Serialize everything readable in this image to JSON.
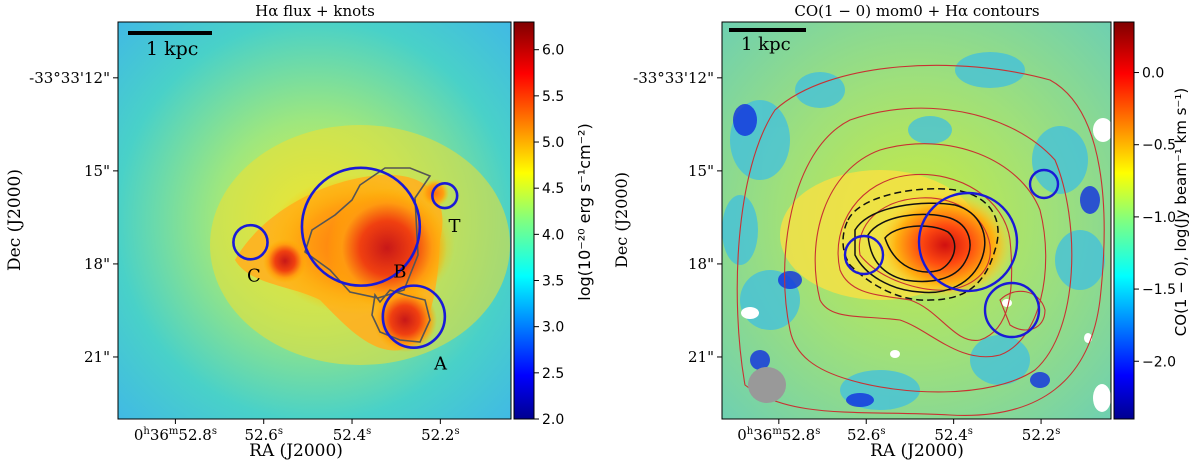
{
  "chart_data": [
    {
      "type": "heatmap",
      "title": "Hα flux + knots",
      "xlabel": "RA (J2000)",
      "ylabel": "Dec (J2000)",
      "x_ticks": [
        {
          "label": "0h36m52.8s",
          "ra_s": 52.8
        },
        {
          "label": "52.6s",
          "ra_s": 52.6
        },
        {
          "label": "52.4s",
          "ra_s": 52.4
        },
        {
          "label": "52.2s",
          "ra_s": 52.2
        }
      ],
      "y_ticks": [
        {
          "label": "-33°33'12\"",
          "dec_arcsec": 12
        },
        {
          "label": "15\"",
          "dec_arcsec": 15
        },
        {
          "label": "18\"",
          "dec_arcsec": 18
        },
        {
          "label": "21\"",
          "dec_arcsec": 21
        }
      ],
      "scalebar": "1 kpc",
      "colorbar": {
        "label": "log(10⁻²⁰ erg s⁻¹cm⁻²)",
        "min": 2.0,
        "max": 6.3,
        "ticks": [
          "2.0",
          "2.5",
          "3.0",
          "3.5",
          "4.0",
          "4.5",
          "5.0",
          "5.5",
          "6.0"
        ],
        "cmap": "jet"
      },
      "knots": [
        {
          "name": "A",
          "ra_s": 52.26,
          "dec_arcsec": 19.7,
          "radius_arcsec": 1.0
        },
        {
          "name": "B",
          "ra_s": 52.38,
          "dec_arcsec": 16.8,
          "radius_arcsec": 1.9
        },
        {
          "name": "C",
          "ra_s": 52.63,
          "dec_arcsec": 17.3,
          "radius_arcsec": 0.55
        },
        {
          "name": "T",
          "ra_s": 52.19,
          "dec_arcsec": 15.8,
          "radius_arcsec": 0.4
        }
      ]
    },
    {
      "type": "heatmap",
      "title": "CO(1 − 0) mom0 + Hα contours",
      "xlabel": "RA (J2000)",
      "ylabel": "Dec (J2000)",
      "x_ticks": [
        {
          "label": "0h36m52.8s",
          "ra_s": 52.8
        },
        {
          "label": "52.6s",
          "ra_s": 52.6
        },
        {
          "label": "52.4s",
          "ra_s": 52.4
        },
        {
          "label": "52.2s",
          "ra_s": 52.2
        }
      ],
      "y_ticks": [
        {
          "label": "-33°33'12\"",
          "dec_arcsec": 12
        },
        {
          "label": "15\"",
          "dec_arcsec": 15
        },
        {
          "label": "18\"",
          "dec_arcsec": 18
        },
        {
          "label": "21\"",
          "dec_arcsec": 21
        }
      ],
      "scalebar": "1 kpc",
      "colorbar": {
        "label": "CO(1 − 0), log(Jy beam⁻¹ km s⁻¹)",
        "min": -2.4,
        "max": 0.35,
        "ticks": [
          "−2.0",
          "−1.5",
          "−1.0",
          "−0.5",
          "0.0"
        ],
        "cmap": "jet"
      },
      "beam": "gray ellipse, bottom-left",
      "contours": "Hα flux (red), CO (black)"
    }
  ],
  "colors": {
    "knot_circle": "#1a1ad6",
    "ha_contour": "#c83232",
    "co_contour": "#111111",
    "beam": "#999999"
  }
}
